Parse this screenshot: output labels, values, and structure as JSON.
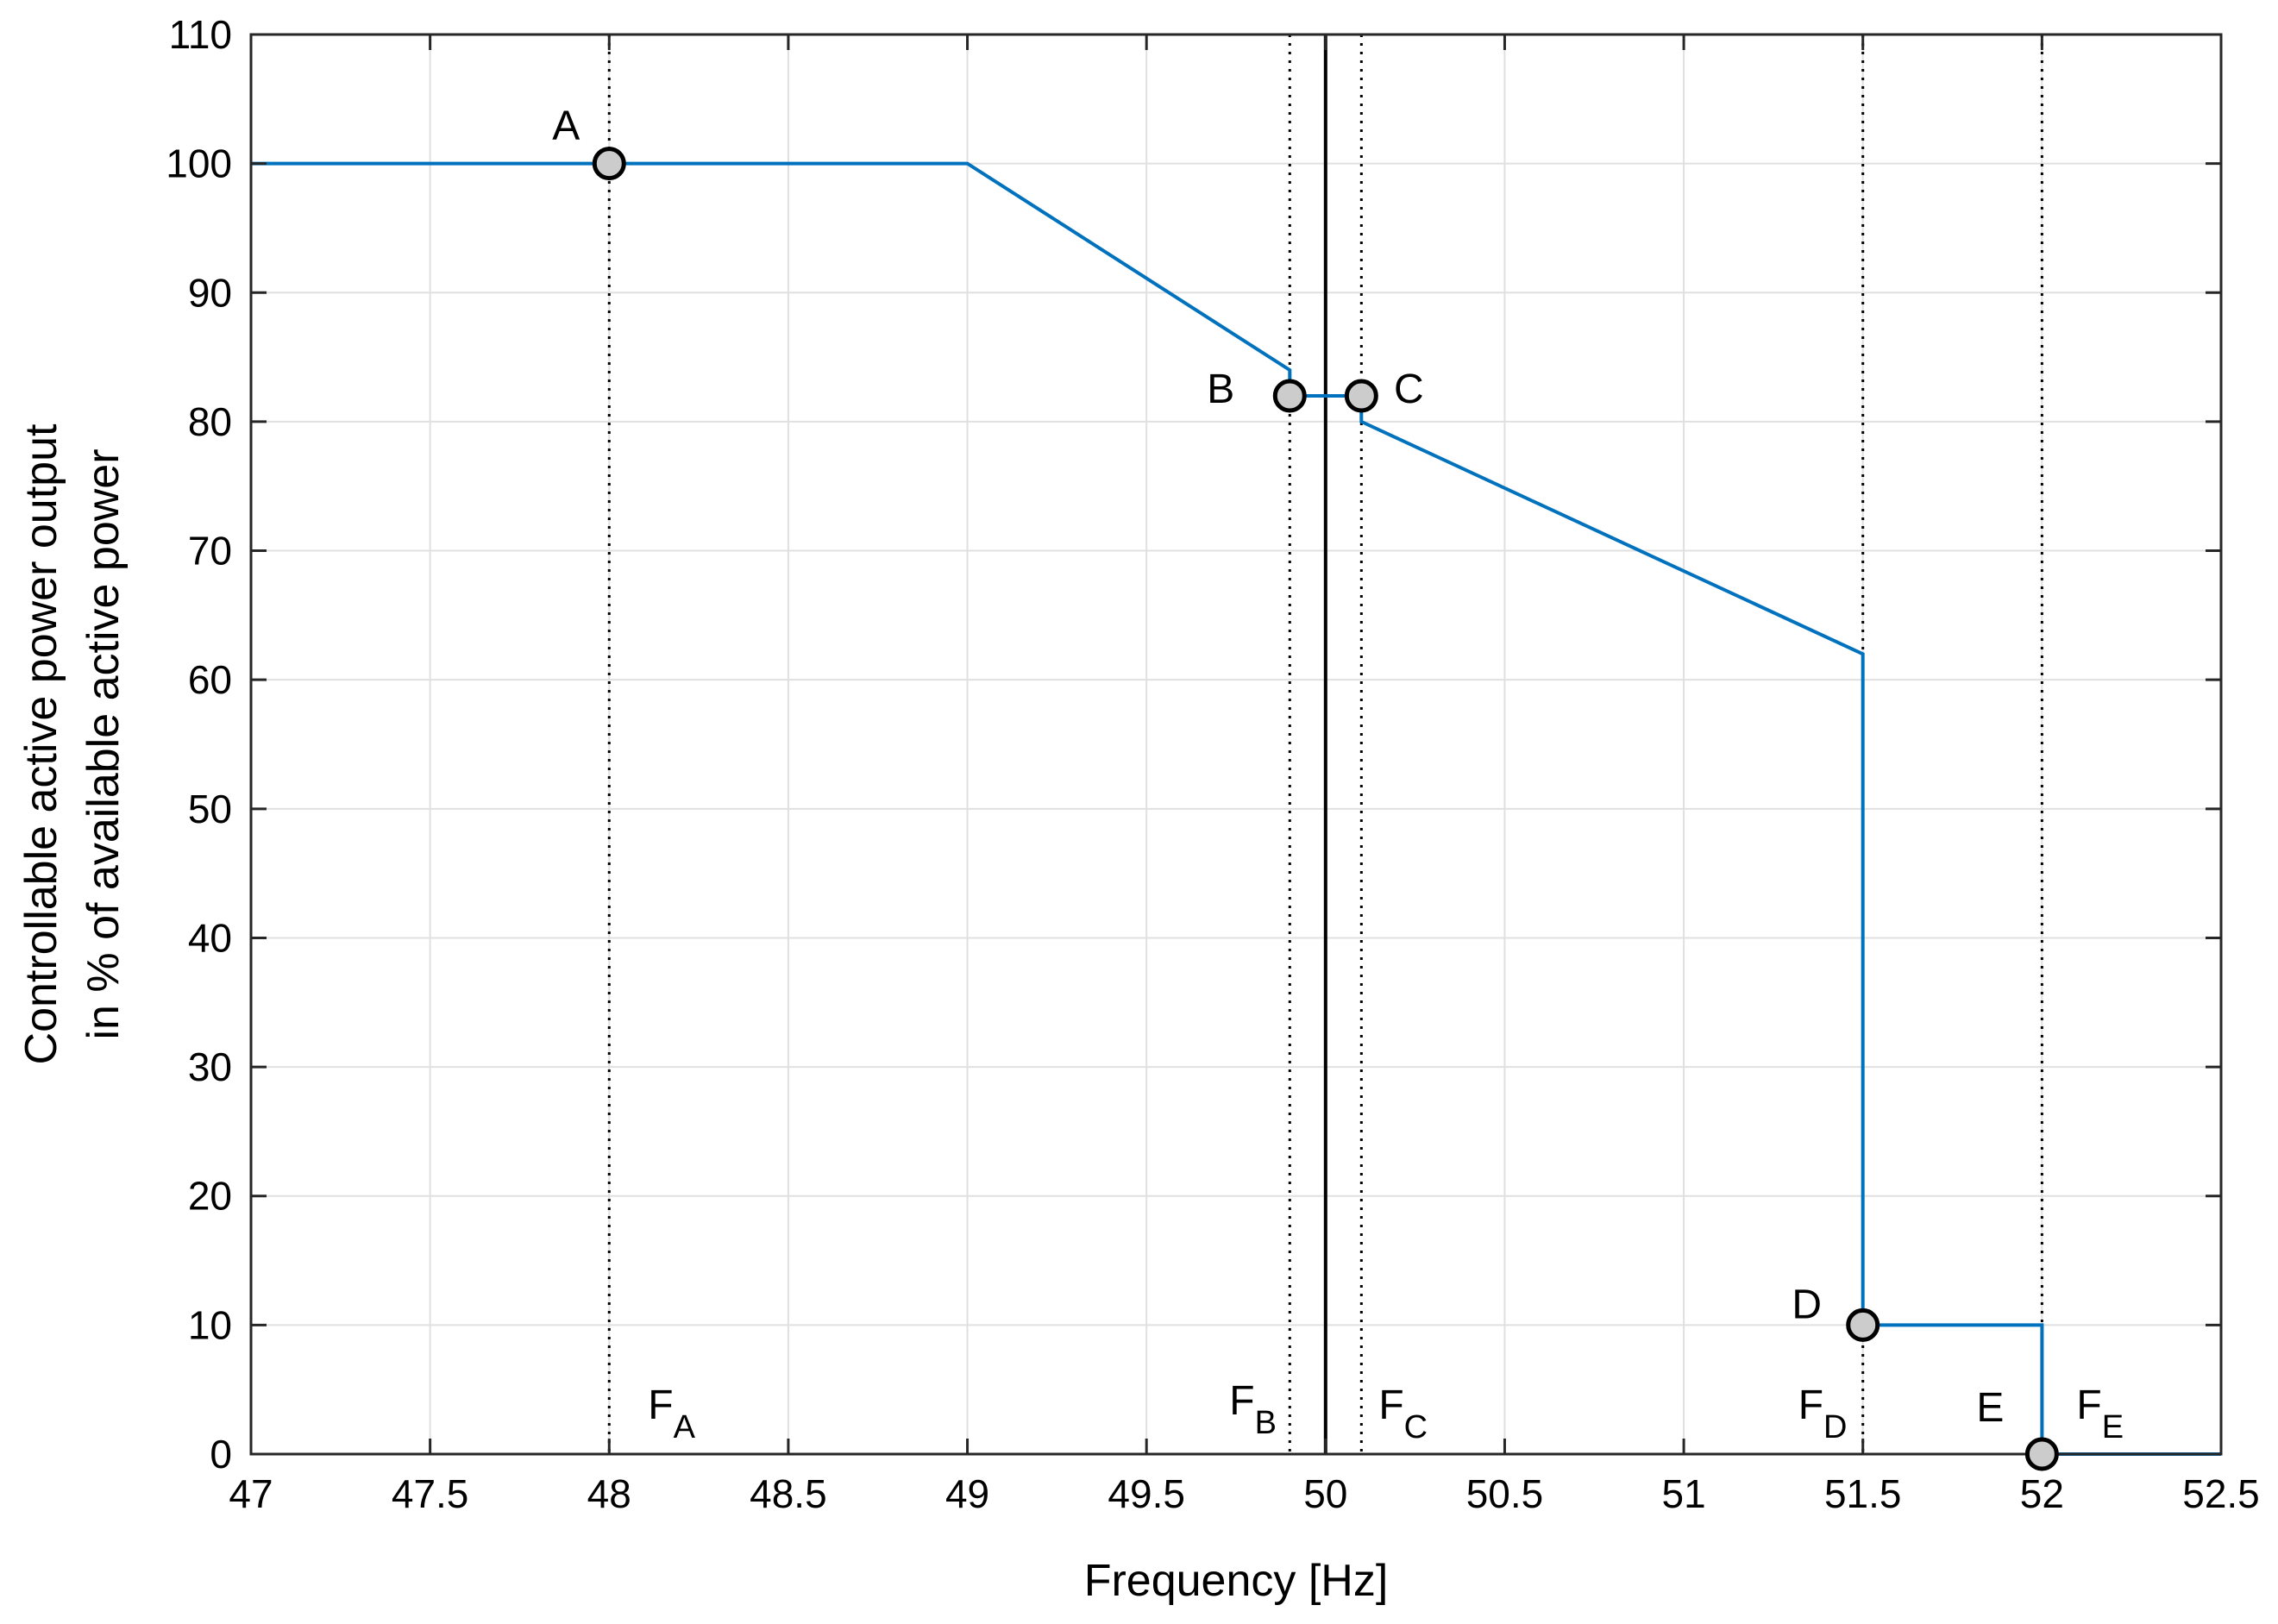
{
  "chart_data": {
    "type": "line",
    "title": "",
    "xlabel": "Frequency [Hz]",
    "ylabel_lines": [
      "Controllable active power output",
      "in % of available active power"
    ],
    "xlim": [
      47,
      52.5
    ],
    "ylim": [
      0,
      110
    ],
    "x_ticks": [
      47,
      47.5,
      48,
      48.5,
      49,
      49.5,
      50,
      50.5,
      51,
      51.5,
      52,
      52.5
    ],
    "x_tick_labels": [
      "47",
      "47.5",
      "48",
      "48.5",
      "49",
      "49.5",
      "50",
      "50.5",
      "51",
      "51.5",
      "52",
      "52.5"
    ],
    "y_ticks": [
      0,
      10,
      20,
      30,
      40,
      50,
      60,
      70,
      80,
      90,
      100,
      110
    ],
    "y_tick_labels": [
      "0",
      "10",
      "20",
      "30",
      "40",
      "50",
      "60",
      "70",
      "80",
      "90",
      "100",
      "110"
    ],
    "grid": true,
    "series": [
      {
        "color": "#0072BD",
        "x": [
          47,
          49,
          49.9,
          49.9,
          50.1,
          50.1,
          51.5,
          51.5,
          52,
          52,
          52.5
        ],
        "y": [
          100,
          100,
          84,
          82,
          82,
          80,
          62,
          10,
          10,
          0,
          0
        ]
      }
    ],
    "nominal_line": {
      "x": 50,
      "color": "#000000"
    },
    "reference_lines": [
      {
        "x": 48,
        "label": "F",
        "subscript": "A"
      },
      {
        "x": 49.9,
        "label": "F",
        "subscript": "B"
      },
      {
        "x": 50.1,
        "label": "F",
        "subscript": "C"
      },
      {
        "x": 51.5,
        "label": "F",
        "subscript": "D"
      },
      {
        "x": 52,
        "label": "F",
        "subscript": "E"
      }
    ],
    "points": [
      {
        "label": "A",
        "x": 48,
        "y": 100
      },
      {
        "label": "B",
        "x": 49.9,
        "y": 82
      },
      {
        "label": "C",
        "x": 50.1,
        "y": 82
      },
      {
        "label": "D",
        "x": 51.5,
        "y": 10
      },
      {
        "label": "E",
        "x": 52,
        "y": 0
      }
    ],
    "marker_fill": "#cccccc",
    "marker_edge": "#000000"
  }
}
